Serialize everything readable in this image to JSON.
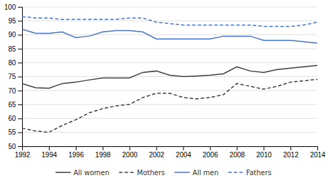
{
  "chart_data": {
    "type": "line",
    "x": [
      1992,
      1993,
      1994,
      1995,
      1996,
      1997,
      1998,
      1999,
      2000,
      2001,
      2002,
      2003,
      2004,
      2005,
      2006,
      2007,
      2008,
      2009,
      2010,
      2011,
      2012,
      2013,
      2014
    ],
    "series": [
      {
        "name": "All women",
        "color": "#3a3a3a",
        "line_style": "solid",
        "values": [
          72.5,
          71.0,
          70.8,
          72.5,
          73.0,
          73.8,
          74.5,
          74.5,
          74.5,
          76.5,
          77.0,
          75.5,
          75.0,
          75.2,
          75.5,
          76.0,
          78.5,
          77.0,
          76.5,
          77.5,
          78.0,
          78.5,
          79.0
        ]
      },
      {
        "name": "Mothers",
        "color": "#3a3a3a",
        "line_style": "dashed",
        "values": [
          56.5,
          55.5,
          55.0,
          57.5,
          59.5,
          62.0,
          63.5,
          64.5,
          65.0,
          67.5,
          69.0,
          69.0,
          67.5,
          67.0,
          67.5,
          68.5,
          72.5,
          71.5,
          70.5,
          71.5,
          73.0,
          73.5,
          74.0
        ]
      },
      {
        "name": "All men",
        "color": "#4472C4",
        "line_style": "solid",
        "values": [
          92.0,
          90.5,
          90.5,
          91.0,
          89.0,
          89.5,
          91.0,
          91.5,
          91.5,
          91.0,
          88.5,
          88.5,
          88.5,
          88.5,
          88.5,
          89.5,
          89.5,
          89.5,
          88.0,
          88.0,
          88.0,
          87.5,
          87.0
        ]
      },
      {
        "name": "Fathers",
        "color": "#4472C4",
        "line_style": "dashed",
        "values": [
          96.5,
          96.0,
          96.0,
          95.5,
          95.5,
          95.5,
          95.5,
          95.5,
          96.0,
          96.0,
          94.5,
          94.0,
          93.5,
          93.5,
          93.5,
          93.5,
          93.5,
          93.5,
          93.0,
          93.0,
          93.0,
          93.5,
          94.5
        ]
      }
    ],
    "xlim": [
      1992,
      2014
    ],
    "xticks": [
      1992,
      1994,
      1996,
      1998,
      2000,
      2002,
      2004,
      2006,
      2008,
      2010,
      2012,
      2014
    ],
    "ylim": [
      50,
      100
    ],
    "yticks": [
      50,
      55,
      60,
      65,
      70,
      75,
      80,
      85,
      90,
      95,
      100
    ],
    "grid": "y",
    "legend": "bottom"
  }
}
